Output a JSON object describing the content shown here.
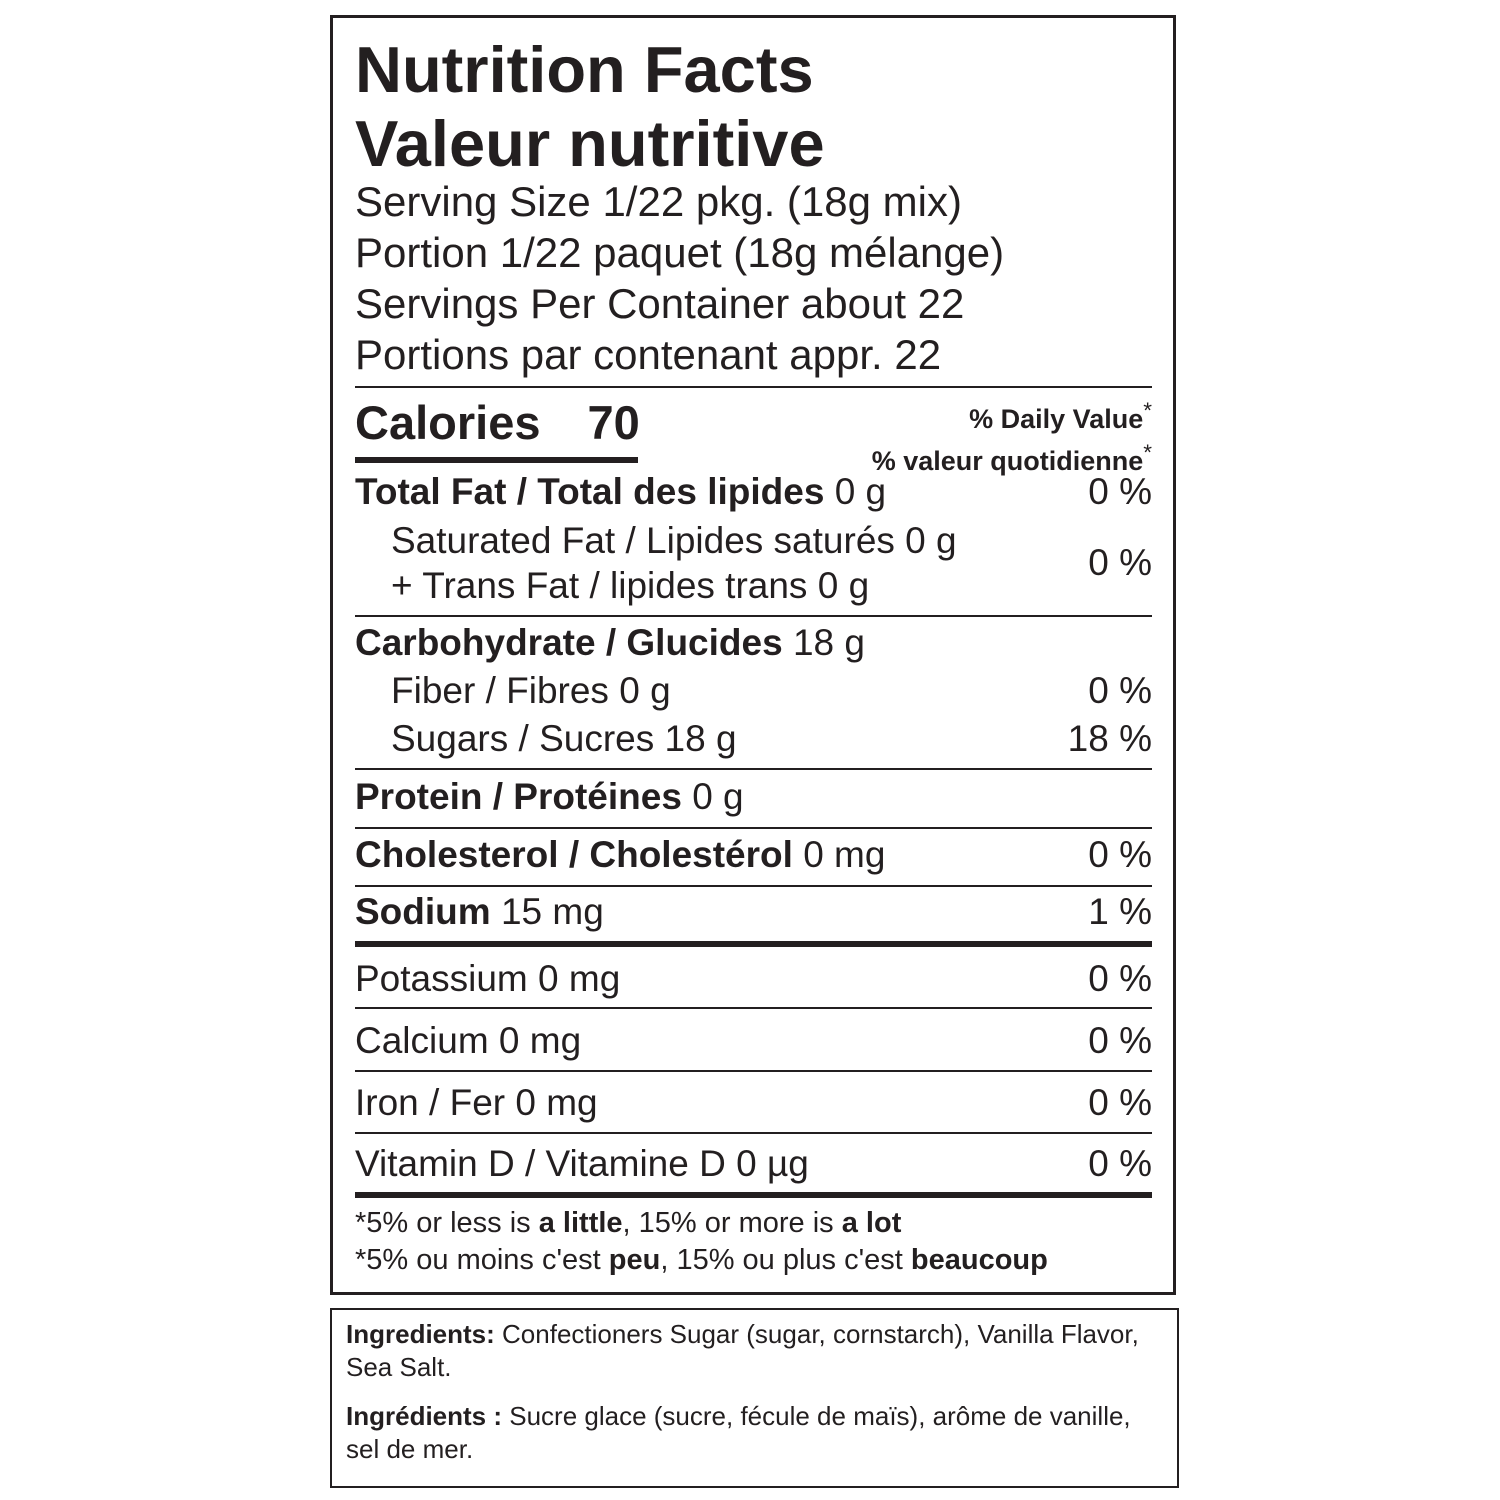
{
  "label": {
    "title_en": "Nutrition Facts",
    "title_fr": "Valeur nutritive",
    "serving": [
      "Serving Size 1/22 pkg. (18g mix)",
      "Portion 1/22 paquet (18g mélange)",
      "Servings Per Container about 22",
      "Portions par contenant appr. 22"
    ],
    "calories": {
      "label": "Calories",
      "value": 70
    },
    "daily_value": {
      "en": "% Daily Value",
      "fr": "% valeur quotidienne",
      "mark": "*"
    },
    "nutrients": [
      {
        "name": "Total Fat / Total des lipides",
        "amount": "0 g",
        "dv": "0 %"
      },
      {
        "lines": [
          "Saturated Fat / Lipides saturés 0 g",
          "+ Trans Fat / lipides trans 0 g"
        ],
        "dv": "0 %"
      },
      {
        "name": "Carbohydrate / Glucides",
        "amount": "18 g"
      },
      {
        "text": "Fiber / Fibres 0 g",
        "dv": "0 %"
      },
      {
        "text": "Sugars / Sucres 18 g",
        "dv": "18 %"
      },
      {
        "name": "Protein / Protéines",
        "amount": "0 g"
      },
      {
        "name": "Cholesterol / Cholestérol",
        "amount": "0 mg",
        "dv": "0 %"
      },
      {
        "name": "Sodium",
        "amount": "15 mg",
        "dv": "1 %"
      }
    ],
    "minerals": [
      {
        "text": "Potassium 0 mg",
        "dv": "0 %"
      },
      {
        "text": "Calcium 0 mg",
        "dv": "0 %"
      },
      {
        "text": "Iron / Fer 0 mg",
        "dv": "0 %"
      },
      {
        "text": "Vitamin D / Vitamine D 0 µg",
        "dv": "0 %"
      }
    ],
    "footnote_en": [
      "*5% or less is ",
      "a little",
      ", 15% or more is ",
      "a lot"
    ],
    "footnote_fr": [
      "*5% ou moins c'est ",
      "peu",
      ", 15% ou plus c'est ",
      "beaucoup"
    ]
  },
  "ingredients": {
    "en": {
      "label": "Ingredients:",
      "text": "Confectioners Sugar (sugar, cornstarch), Vanilla Flavor, Sea Salt."
    },
    "fr": {
      "label": "Ingrédients :",
      "text": "Sucre glace (sucre, fécule de maïs), arôme de vanille, sel de mer."
    }
  }
}
